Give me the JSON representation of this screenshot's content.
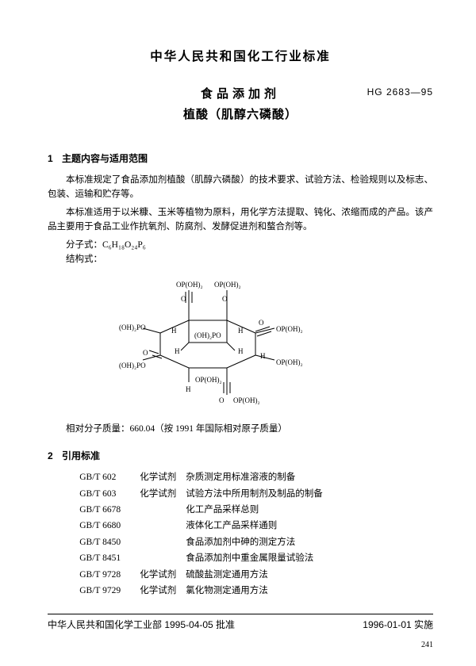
{
  "header": {
    "org_title": "中华人民共和国化工行业标准"
  },
  "title": {
    "main": "食品添加剂",
    "sub": "植酸（肌醇六磷酸）",
    "code": "HG 2683—95"
  },
  "section1": {
    "num": "1",
    "heading": "主题内容与适用范围",
    "p1": "本标准规定了食品添加剂植酸（肌醇六磷酸）的技术要求、试验方法、检验规则以及标志、包装、运输和贮存等。",
    "p2": "本标准适用于以米糠、玉米等植物为原料，用化学方法提取、钝化、浓缩而成的产品。该产品主要用于食品工业作抗氧剂、防腐剂、发酵促进剂和螯合剂等。",
    "formula_label": "分子式：C₆H₁₈O₂₄P₆",
    "structure_label": "结构式：",
    "mol_mass": "相对分子质量：660.04（按 1991 年国际相对原子质量）"
  },
  "section2": {
    "num": "2",
    "heading": "引用标准",
    "refs": [
      {
        "code": "GB/T 602",
        "mid": "化学试剂",
        "title": "杂质测定用标准溶液的制备"
      },
      {
        "code": "GB/T 603",
        "mid": "化学试剂",
        "title": "试验方法中所用制剂及制品的制备"
      },
      {
        "code": "GB/T 6678",
        "mid": "",
        "title": "化工产品采样总则"
      },
      {
        "code": "GB/T 6680",
        "mid": "",
        "title": "液体化工产品采样通则"
      },
      {
        "code": "GB/T 8450",
        "mid": "",
        "title": "食品添加剂中砷的测定方法"
      },
      {
        "code": "GB/T 8451",
        "mid": "",
        "title": "食品添加剂中重金属限量试验法"
      },
      {
        "code": "GB/T 9728",
        "mid": "化学试剂",
        "title": "硫酸盐测定通用方法"
      },
      {
        "code": "GB/T 9729",
        "mid": "化学试剂",
        "title": "氯化物测定通用方法"
      }
    ]
  },
  "diagram": {
    "labels": {
      "oph2_t1": "OP(OH)₂",
      "oph2_t2": "OP(OH)₂",
      "oph2_r": "OP(OH)₂",
      "oph2_b": "OP(OH)₂",
      "oh2po_l1": "(OH)₂PO",
      "oh2po_l2": "(OH)₂PO",
      "o_t1": "O",
      "o_t2": "O",
      "o_l1": "O",
      "o_l2": "O",
      "o_r": "O",
      "o_b": "O",
      "h1": "H",
      "h2": "H",
      "h3": "H",
      "h4": "H",
      "h5": "H",
      "h6": "H"
    },
    "stroke": "#000000",
    "stroke_width": 1
  },
  "footer": {
    "left": "中华人民共和国化学工业部 1995-04-05 批准",
    "right": "1996-01-01 实施",
    "page": "241"
  }
}
